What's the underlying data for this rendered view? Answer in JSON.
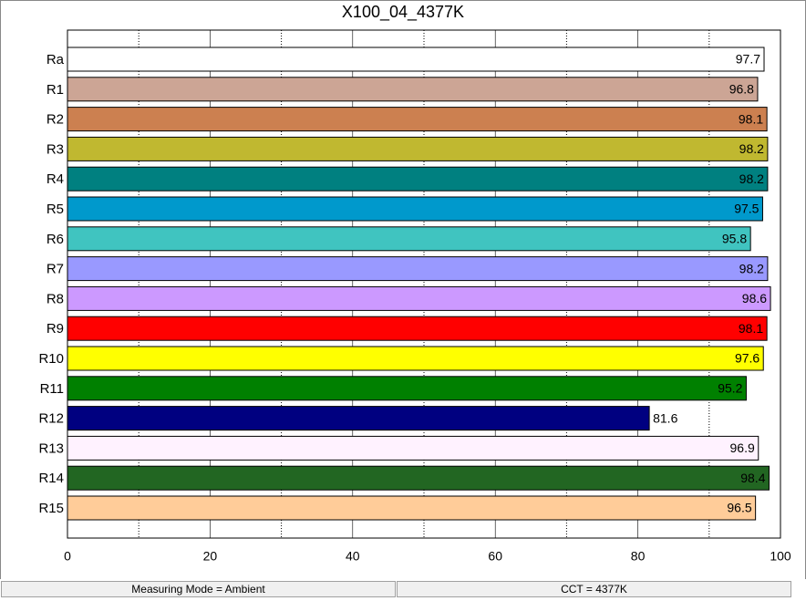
{
  "chart_data": {
    "type": "barh",
    "title": "X100_04_4377K",
    "categories": [
      "Ra",
      "R1",
      "R2",
      "R3",
      "R4",
      "R5",
      "R6",
      "R7",
      "R8",
      "R9",
      "R10",
      "R11",
      "R12",
      "R13",
      "R14",
      "R15"
    ],
    "values": [
      97.7,
      96.8,
      98.1,
      98.2,
      98.2,
      97.5,
      95.8,
      98.2,
      98.6,
      98.1,
      97.6,
      95.2,
      81.6,
      96.9,
      98.4,
      96.5
    ],
    "colors": [
      "#ffffff",
      "#cca595",
      "#cc8050",
      "#c0b830",
      "#008080",
      "#0099cc",
      "#40c4c0",
      "#9999ff",
      "#cc99ff",
      "#ff0000",
      "#ffff00",
      "#008000",
      "#000080",
      "#fff2ff",
      "#226622",
      "#ffcc99"
    ],
    "xlim": [
      0,
      100
    ],
    "xticks": [
      0,
      20,
      40,
      60,
      80,
      100
    ],
    "xminorticks": [
      10,
      30,
      50,
      70,
      90
    ],
    "grid": true
  },
  "status_bar": [
    "Measuring Mode = Ambient",
    "CCT = 4377K"
  ]
}
